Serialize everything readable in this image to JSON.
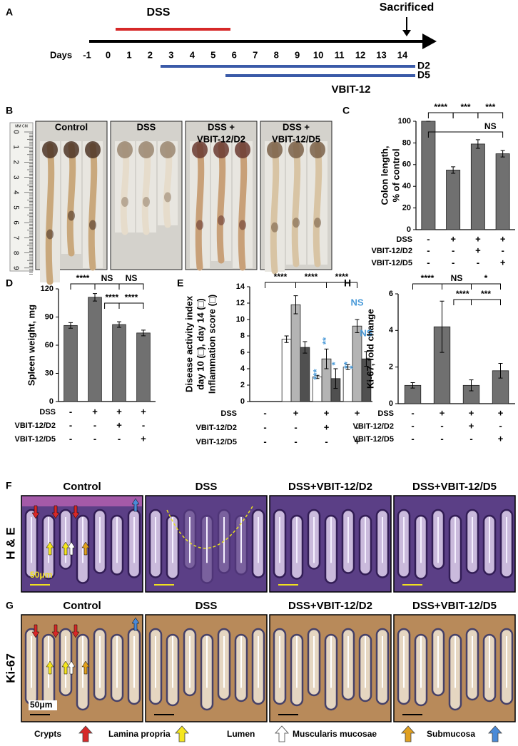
{
  "panel_a": {
    "panel": "A",
    "dss": "DSS",
    "sacrificed": "Sacrificed",
    "days_label": "Days",
    "days": [
      -1,
      0,
      1,
      2,
      3,
      4,
      5,
      6,
      7,
      8,
      9,
      10,
      11,
      12,
      13,
      14
    ],
    "d2": "D2",
    "d5": "D5",
    "drug": "VBIT-12"
  },
  "panel_b": {
    "panel": "B",
    "groups": [
      [
        "Control"
      ],
      [
        "DSS"
      ],
      [
        "DSS +",
        "VBIT-12/D2"
      ],
      [
        "DSS +",
        "VBIT-12/D5"
      ]
    ],
    "ruler_unit": "MM CM",
    "ruler": [
      0,
      1,
      2,
      3,
      4,
      5,
      6,
      7,
      8,
      9
    ]
  },
  "chart_data": [
    {
      "type": "bar",
      "panel": "C",
      "ylabel": [
        "Colon length,",
        "% of control"
      ],
      "values": [
        100,
        55,
        79,
        70
      ],
      "errors": [
        0,
        3,
        4,
        3
      ],
      "color": "#707070",
      "ylim": [
        0,
        100
      ],
      "yticks": [
        0,
        20,
        40,
        60,
        80,
        100
      ],
      "conditions": [
        {
          "name": "DSS",
          "marks": [
            "-",
            "+",
            "+",
            "+"
          ]
        },
        {
          "name": "VBIT-12/D2",
          "marks": [
            "-",
            "-",
            "+",
            "-"
          ]
        },
        {
          "name": "VBIT-12/D5",
          "marks": [
            "-",
            "-",
            "-",
            "+"
          ]
        }
      ],
      "annotations": [
        "****",
        "***",
        "***",
        "NS"
      ]
    },
    {
      "type": "bar",
      "panel": "D",
      "ylabel": [
        "Spleen weight, mg"
      ],
      "values": [
        81,
        111,
        82,
        73
      ],
      "errors": [
        3,
        4,
        3,
        3
      ],
      "color": "#707070",
      "ylim": [
        0,
        120
      ],
      "yticks": [
        0,
        30,
        60,
        90,
        120
      ],
      "conditions": [
        {
          "name": "DSS",
          "marks": [
            "-",
            "+",
            "+",
            "+"
          ]
        },
        {
          "name": "VBIT-12/D2",
          "marks": [
            "-",
            "-",
            "+",
            "-"
          ]
        },
        {
          "name": "VBIT-12/D5",
          "marks": [
            "-",
            "-",
            "-",
            "+"
          ]
        }
      ],
      "annotations": [
        "****",
        "NS",
        "NS",
        "****",
        "****"
      ]
    },
    {
      "type": "bar",
      "panel": "E",
      "ylabel": [
        "Disease activity index",
        "day 10 (□), day 14 (□)",
        "Inflammation  score (□)"
      ],
      "series": [
        {
          "color": "#ffffff",
          "values": [
            0,
            7.6,
            3.0,
            4.2
          ],
          "errors": [
            0,
            0.4,
            0.2,
            0.3
          ]
        },
        {
          "color": "#b4b4b4",
          "values": [
            0,
            11.8,
            5.2,
            9.2
          ],
          "errors": [
            0,
            1.1,
            1.2,
            0.8
          ]
        },
        {
          "color": "#505050",
          "values": [
            0,
            6.6,
            2.8,
            5.2
          ],
          "errors": [
            0,
            0.7,
            1.2,
            0.9
          ]
        }
      ],
      "ylim": [
        0,
        14
      ],
      "yticks": [
        0,
        2,
        4,
        6,
        8,
        10,
        12,
        14
      ],
      "conditions": [
        {
          "name": "DSS",
          "marks": [
            "-",
            "+",
            "+",
            "+"
          ]
        },
        {
          "name": "VBIT-12/D2",
          "marks": [
            "-",
            "-",
            "+",
            "-"
          ]
        },
        {
          "name": "VBIT-12/D5",
          "marks": [
            "-",
            "-",
            "-",
            "+"
          ]
        }
      ],
      "annotations": [
        "****",
        "****",
        "****"
      ],
      "blue_annotations": [
        "***",
        "**",
        "*",
        "**",
        "*",
        "NS",
        "NS"
      ],
      "annotation_color": "#4a9ad8"
    },
    {
      "type": "bar",
      "panel": "H",
      "ylabel": [
        "Ki-67, fold change"
      ],
      "values": [
        1.0,
        4.2,
        1.0,
        1.8
      ],
      "errors": [
        0.15,
        1.4,
        0.3,
        0.4
      ],
      "color": "#707070",
      "ylim": [
        0,
        6
      ],
      "yticks": [
        0,
        2,
        4,
        6
      ],
      "conditions": [
        {
          "name": "DSS",
          "marks": [
            "-",
            "+",
            "+",
            "+"
          ]
        },
        {
          "name": "VBIT-12/D2",
          "marks": [
            "-",
            "-",
            "+",
            "-"
          ]
        },
        {
          "name": "VBIT-12/D5",
          "marks": [
            "-",
            "-",
            "-",
            "+"
          ]
        }
      ],
      "annotations": [
        "****",
        "NS",
        "*",
        "****",
        "***"
      ]
    }
  ],
  "panel_f": {
    "panel": "F",
    "stain": "H & E",
    "groups": [
      "Control",
      "DSS",
      "DSS+VBIT-12/D2",
      "DSS+VBIT-12/D5"
    ],
    "scale": "50μm"
  },
  "panel_g": {
    "panel": "G",
    "stain": "Ki-67",
    "groups": [
      "Control",
      "DSS",
      "DSS+VBIT-12/D2",
      "DSS+VBIT-12/D5"
    ],
    "scale": "50μm",
    "legend": [
      {
        "label": "Crypts",
        "color": "#d62828"
      },
      {
        "label": "Lamina propria",
        "color": "#f5e61e"
      },
      {
        "label": "Lumen",
        "color": "#ffffff"
      },
      {
        "label": "Muscularis mucosae",
        "color": "#e0a020"
      },
      {
        "label": "Submucosa",
        "color": "#4a8ad8"
      }
    ]
  }
}
